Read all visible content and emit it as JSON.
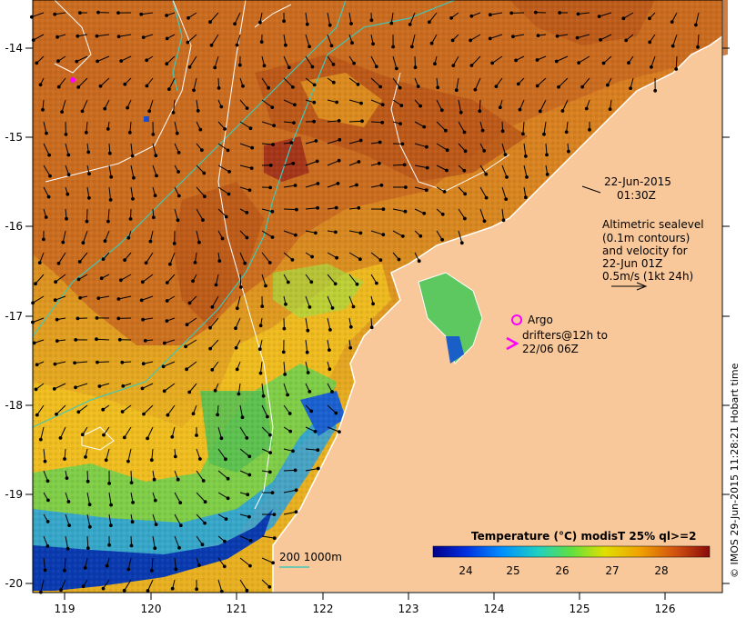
{
  "map": {
    "lon_ticks": [
      "119",
      "120",
      "121",
      "122",
      "123",
      "124",
      "125",
      "126"
    ],
    "lat_ticks": [
      "-14",
      "-15",
      "-16",
      "-17",
      "-18",
      "-19",
      "-20"
    ],
    "date_line1": "22-Jun-2015",
    "date_line2": "01:30Z",
    "legend_lines": [
      "Altimetric sealevel",
      "(0.1m contours)",
      "and velocity for",
      "22-Jun 01Z",
      "0.5m/s (1kt 24h)"
    ],
    "argo_label": "Argo",
    "drifters_line1": "drifters@12h to",
    "drifters_line2": "22/06 06Z",
    "bathy_label": "200  1000m",
    "colorbar_title": "Temperature (°C) modisT 25% ql>=2",
    "colorbar_ticks": [
      "24",
      "25",
      "26",
      "27",
      "28"
    ],
    "credit": "© IMOS 29-Jun-2015 11:28:21 Hobart time",
    "colors": {
      "land": "#f9c89a",
      "warm": "#c8601a",
      "mid": "#e8a020",
      "cool": "#2a6fd6",
      "cold": "#0a0a90",
      "green": "#5cc85c",
      "contour_bathy": "#40c8b8",
      "marker": "#ff00ff"
    }
  }
}
